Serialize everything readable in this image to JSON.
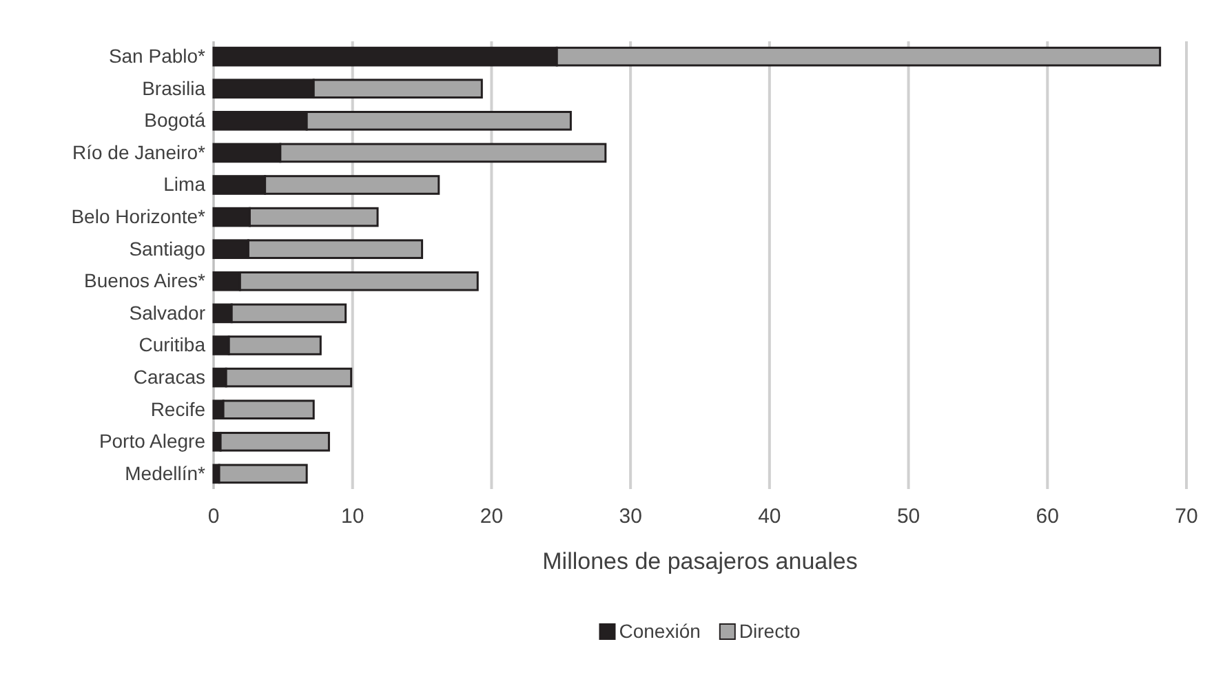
{
  "chart_data": {
    "type": "bar",
    "orientation": "horizontal",
    "stacked": true,
    "xlabel": "Millones de pasajeros anuales",
    "categories": [
      "San Pablo*",
      "Brasilia",
      "Bogotá",
      "Río de Janeiro*",
      "Lima",
      "Belo Horizonte*",
      "Santiago",
      "Buenos Aires*",
      "Salvador",
      "Curitiba",
      "Caracas",
      "Recife",
      "Porto Alegre",
      "Medellín*"
    ],
    "series": [
      {
        "name": "Conexión",
        "color": "#231f20",
        "values": [
          24.7,
          7.2,
          6.7,
          4.8,
          3.7,
          2.6,
          2.5,
          1.9,
          1.3,
          1.1,
          0.9,
          0.7,
          0.5,
          0.4
        ]
      },
      {
        "name": "Directo",
        "color": "#a6a6a6",
        "values": [
          43.4,
          12.1,
          19.0,
          23.4,
          12.5,
          9.2,
          12.5,
          17.1,
          8.2,
          6.6,
          9.0,
          6.5,
          7.8,
          6.3
        ]
      }
    ],
    "xlim": [
      0,
      70
    ],
    "xticks": [
      0,
      10,
      20,
      30,
      40,
      50,
      60,
      70
    ],
    "grid": "x",
    "legend": "bottom"
  }
}
